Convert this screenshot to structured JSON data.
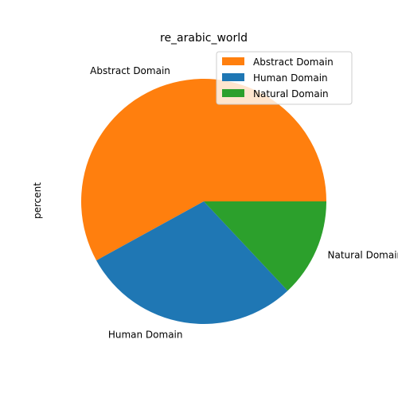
{
  "chart_data": {
    "type": "pie",
    "title": "re_arabic_world",
    "ylabel": "percent",
    "categories": [
      "Abstract Domain",
      "Human Domain",
      "Natural Domain"
    ],
    "values": [
      58,
      29,
      13
    ],
    "colors": [
      "#ff7f0e",
      "#1f77b4",
      "#2ca02c"
    ],
    "legend": {
      "position": "top-right",
      "entries": [
        "Abstract Domain",
        "Human Domain",
        "Natural Domain"
      ]
    }
  }
}
